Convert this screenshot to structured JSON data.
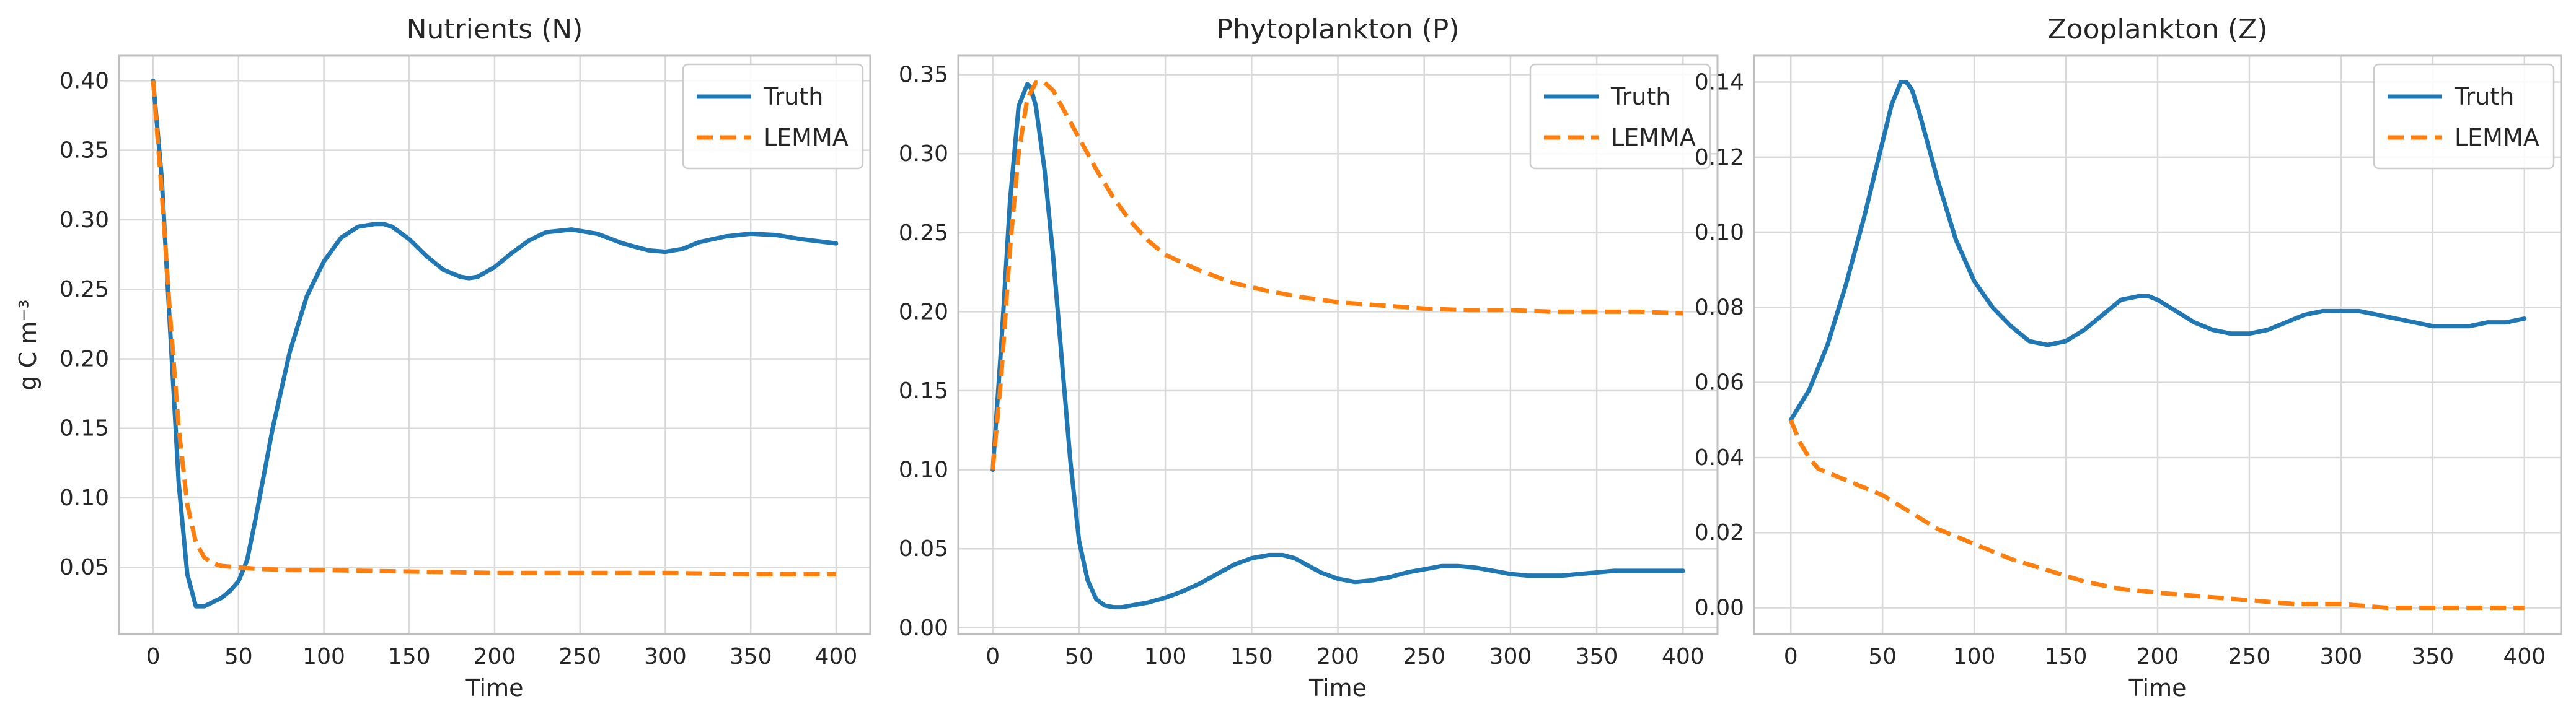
{
  "figure": {
    "ylabel": "g C m⁻³",
    "colors": {
      "truth": "#1f77b4",
      "lemma": "#ff7f0e",
      "grid": "#d9d9d9",
      "frame": "#bfbfbf",
      "background": "#ffffff"
    }
  },
  "chart_data": [
    {
      "type": "line",
      "title": "Nutrients (N)",
      "xlabel": "Time",
      "ylabel": "g C m⁻³",
      "xlim": [
        -20,
        420
      ],
      "ylim": [
        0.002,
        0.418
      ],
      "xticks": [
        0,
        50,
        100,
        150,
        200,
        250,
        300,
        350,
        400
      ],
      "yticks": [
        0.05,
        0.1,
        0.15,
        0.2,
        0.25,
        0.3,
        0.35,
        0.4
      ],
      "ytick_decimals": 2,
      "grid": true,
      "legend": {
        "position": "top-right",
        "entries": [
          "Truth",
          "LEMMA"
        ]
      },
      "series": [
        {
          "name": "Truth",
          "style": "solid",
          "color": "#1f77b4",
          "x": [
            0,
            5,
            10,
            15,
            20,
            25,
            30,
            35,
            40,
            45,
            50,
            55,
            60,
            70,
            80,
            90,
            100,
            110,
            120,
            130,
            135,
            140,
            150,
            160,
            170,
            180,
            185,
            190,
            200,
            210,
            220,
            230,
            245,
            260,
            275,
            290,
            300,
            310,
            320,
            335,
            350,
            365,
            380,
            400
          ],
          "y": [
            0.4,
            0.33,
            0.22,
            0.11,
            0.045,
            0.022,
            0.022,
            0.025,
            0.028,
            0.033,
            0.04,
            0.055,
            0.085,
            0.15,
            0.205,
            0.245,
            0.27,
            0.287,
            0.295,
            0.297,
            0.297,
            0.295,
            0.286,
            0.274,
            0.264,
            0.259,
            0.258,
            0.259,
            0.266,
            0.276,
            0.285,
            0.291,
            0.293,
            0.29,
            0.283,
            0.278,
            0.277,
            0.279,
            0.284,
            0.288,
            0.29,
            0.289,
            0.286,
            0.283
          ]
        },
        {
          "name": "LEMMA",
          "style": "dashed",
          "color": "#ff7f0e",
          "x": [
            0,
            5,
            10,
            15,
            20,
            25,
            30,
            35,
            40,
            50,
            60,
            80,
            100,
            150,
            200,
            250,
            300,
            350,
            400
          ],
          "y": [
            0.4,
            0.32,
            0.23,
            0.15,
            0.095,
            0.068,
            0.057,
            0.053,
            0.051,
            0.05,
            0.049,
            0.048,
            0.048,
            0.047,
            0.046,
            0.046,
            0.046,
            0.045,
            0.045
          ]
        }
      ]
    },
    {
      "type": "line",
      "title": "Phytoplankton (P)",
      "xlabel": "Time",
      "ylabel": "",
      "xlim": [
        -20,
        420
      ],
      "ylim": [
        -0.004,
        0.362
      ],
      "xticks": [
        0,
        50,
        100,
        150,
        200,
        250,
        300,
        350,
        400
      ],
      "yticks": [
        0.0,
        0.05,
        0.1,
        0.15,
        0.2,
        0.25,
        0.3,
        0.35
      ],
      "ytick_decimals": 2,
      "grid": true,
      "legend": {
        "position": "top-right",
        "entries": [
          "Truth",
          "LEMMA"
        ]
      },
      "series": [
        {
          "name": "Truth",
          "style": "solid",
          "color": "#1f77b4",
          "x": [
            0,
            5,
            10,
            15,
            20,
            22,
            25,
            30,
            35,
            40,
            45,
            50,
            55,
            60,
            65,
            70,
            75,
            80,
            90,
            100,
            110,
            120,
            130,
            140,
            150,
            160,
            168,
            175,
            180,
            190,
            200,
            210,
            220,
            230,
            240,
            250,
            260,
            270,
            280,
            290,
            300,
            310,
            320,
            330,
            340,
            350,
            360,
            370,
            380,
            390,
            400
          ],
          "y": [
            0.1,
            0.18,
            0.27,
            0.33,
            0.344,
            0.342,
            0.33,
            0.29,
            0.235,
            0.17,
            0.105,
            0.055,
            0.03,
            0.018,
            0.014,
            0.013,
            0.013,
            0.014,
            0.016,
            0.019,
            0.023,
            0.028,
            0.034,
            0.04,
            0.044,
            0.046,
            0.046,
            0.044,
            0.041,
            0.035,
            0.031,
            0.029,
            0.03,
            0.032,
            0.035,
            0.037,
            0.039,
            0.039,
            0.038,
            0.036,
            0.034,
            0.033,
            0.033,
            0.033,
            0.034,
            0.035,
            0.036,
            0.036,
            0.036,
            0.036,
            0.036
          ]
        },
        {
          "name": "LEMMA",
          "style": "dashed",
          "color": "#ff7f0e",
          "x": [
            0,
            5,
            10,
            15,
            20,
            25,
            30,
            35,
            40,
            50,
            60,
            70,
            80,
            90,
            100,
            120,
            140,
            160,
            180,
            200,
            225,
            250,
            275,
            300,
            325,
            350,
            375,
            400
          ],
          "y": [
            0.1,
            0.16,
            0.24,
            0.3,
            0.335,
            0.345,
            0.345,
            0.34,
            0.33,
            0.31,
            0.29,
            0.272,
            0.257,
            0.245,
            0.236,
            0.226,
            0.218,
            0.213,
            0.209,
            0.206,
            0.204,
            0.202,
            0.201,
            0.201,
            0.2,
            0.2,
            0.2,
            0.199
          ]
        }
      ]
    },
    {
      "type": "line",
      "title": "Zooplankton (Z)",
      "xlabel": "Time",
      "ylabel": "",
      "xlim": [
        -20,
        420
      ],
      "ylim": [
        -0.007,
        0.147
      ],
      "xticks": [
        0,
        50,
        100,
        150,
        200,
        250,
        300,
        350,
        400
      ],
      "yticks": [
        0.0,
        0.02,
        0.04,
        0.06,
        0.08,
        0.1,
        0.12,
        0.14
      ],
      "ytick_decimals": 2,
      "grid": true,
      "legend": {
        "position": "top-right",
        "entries": [
          "Truth",
          "LEMMA"
        ]
      },
      "series": [
        {
          "name": "Truth",
          "style": "solid",
          "color": "#1f77b4",
          "x": [
            0,
            10,
            20,
            30,
            40,
            50,
            55,
            60,
            63,
            66,
            70,
            80,
            90,
            100,
            110,
            120,
            130,
            140,
            150,
            160,
            170,
            180,
            190,
            195,
            200,
            210,
            220,
            230,
            240,
            250,
            260,
            270,
            280,
            290,
            300,
            305,
            310,
            320,
            330,
            340,
            350,
            360,
            370,
            380,
            390,
            400
          ],
          "y": [
            0.05,
            0.058,
            0.07,
            0.086,
            0.104,
            0.124,
            0.134,
            0.14,
            0.14,
            0.138,
            0.132,
            0.114,
            0.098,
            0.087,
            0.08,
            0.075,
            0.071,
            0.07,
            0.071,
            0.074,
            0.078,
            0.082,
            0.083,
            0.083,
            0.082,
            0.079,
            0.076,
            0.074,
            0.073,
            0.073,
            0.074,
            0.076,
            0.078,
            0.079,
            0.079,
            0.079,
            0.079,
            0.078,
            0.077,
            0.076,
            0.075,
            0.075,
            0.075,
            0.076,
            0.076,
            0.077
          ]
        },
        {
          "name": "LEMMA",
          "style": "dashed",
          "color": "#ff7f0e",
          "x": [
            0,
            5,
            10,
            15,
            20,
            30,
            40,
            50,
            60,
            70,
            80,
            90,
            100,
            120,
            140,
            160,
            180,
            200,
            225,
            250,
            275,
            300,
            325,
            350,
            375,
            400
          ],
          "y": [
            0.05,
            0.044,
            0.04,
            0.037,
            0.036,
            0.034,
            0.032,
            0.03,
            0.027,
            0.024,
            0.021,
            0.019,
            0.017,
            0.013,
            0.01,
            0.007,
            0.005,
            0.004,
            0.003,
            0.002,
            0.001,
            0.001,
            0.0,
            0.0,
            0.0,
            0.0
          ]
        }
      ]
    }
  ]
}
